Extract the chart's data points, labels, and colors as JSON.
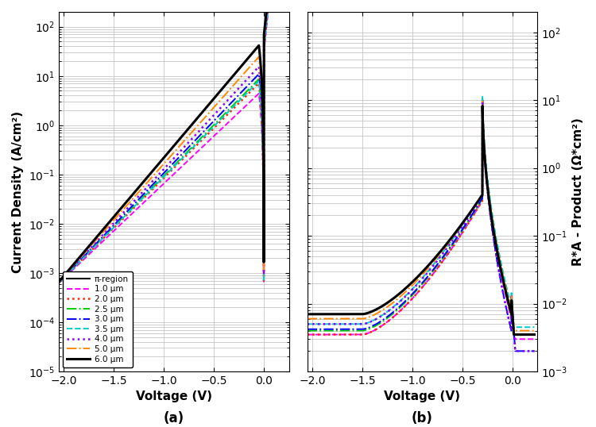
{
  "title_a": "(a)",
  "title_b": "(b)",
  "xlabel": "Voltage (V)",
  "ylabel_a": "Current Density (A/cm²)",
  "ylabel_b": "R*A - Product (Ω*cm²)",
  "xlim": [
    -2.05,
    0.25
  ],
  "ylim_a": [
    1e-05,
    200
  ],
  "ylim_b": [
    0.001,
    200
  ],
  "xticks": [
    -2.0,
    -1.5,
    -1.0,
    -0.5,
    0.0
  ],
  "series": [
    {
      "label": "1.0 μm",
      "color": "#ff00ff",
      "linestyle": "--",
      "lw": 1.4,
      "J_sat": 5.5,
      "J_n": 30.0,
      "J_min": 0.0005,
      "RA_flat": 0.0035,
      "RA_peak": 15.0,
      "RA_min": 0.006,
      "RA_fwd": 0.008
    },
    {
      "label": "2.0 μm",
      "color": "#ff2200",
      "linestyle": ":",
      "lw": 1.8,
      "J_sat": 9.0,
      "J_n": 35.0,
      "J_min": 0.0005,
      "RA_flat": 0.0035,
      "RA_peak": 15.0,
      "RA_min": 0.007,
      "RA_fwd": 0.008
    },
    {
      "label": "2.5 μm",
      "color": "#00cc00",
      "linestyle": "-.",
      "lw": 1.4,
      "J_sat": 11.0,
      "J_n": 38.0,
      "J_min": 0.0005,
      "RA_flat": 0.004,
      "RA_peak": 15.0,
      "RA_min": 0.007,
      "RA_fwd": 0.008
    },
    {
      "label": "3.0 μm",
      "color": "#0000ff",
      "linestyle": "-.",
      "lw": 1.4,
      "J_sat": 14.0,
      "J_n": 42.0,
      "J_min": 0.0005,
      "RA_flat": 0.0042,
      "RA_peak": 15.0,
      "RA_min": 0.004,
      "RA_fwd": 0.008
    },
    {
      "label": "3.5 μm",
      "color": "#00cccc",
      "linestyle": "--",
      "lw": 1.4,
      "J_sat": 10.0,
      "J_n": 36.0,
      "J_min": 0.0005,
      "RA_flat": 0.005,
      "RA_peak": 17.0,
      "RA_min": 0.009,
      "RA_fwd": 0.009
    },
    {
      "label": "4.0 μm",
      "color": "#8800ff",
      "linestyle": ":",
      "lw": 1.8,
      "J_sat": 20.0,
      "J_n": 48.0,
      "J_min": 0.0005,
      "RA_flat": 0.005,
      "RA_peak": 15.0,
      "RA_min": 0.004,
      "RA_fwd": 0.008
    },
    {
      "label": "5.0 μm",
      "color": "#ff8800",
      "linestyle": "-.",
      "lw": 1.4,
      "J_sat": 32.0,
      "J_n": 55.0,
      "J_min": 0.0005,
      "RA_flat": 0.006,
      "RA_peak": 14.0,
      "RA_min": 0.008,
      "RA_fwd": 0.008
    },
    {
      "label": "6.0 μm",
      "color": "#000000",
      "linestyle": "-",
      "lw": 2.2,
      "J_sat": 55.0,
      "J_n": 65.0,
      "J_min": 0.0005,
      "RA_flat": 0.007,
      "RA_peak": 12.0,
      "RA_min": 0.007,
      "RA_fwd": 0.007
    }
  ],
  "legend_label_pi": "π-region",
  "bg_color": "#ffffff",
  "grid_color": "#bbbbbb"
}
